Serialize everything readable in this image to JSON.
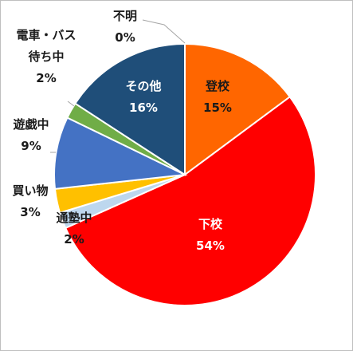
{
  "chart_data": {
    "type": "pie",
    "title": "",
    "slices": [
      {
        "name": "不明",
        "value": 0,
        "value_label": "0%",
        "color": "#7f7f7f",
        "name_lines": [
          "不明"
        ]
      },
      {
        "name": "登校",
        "value": 15,
        "value_label": "15%",
        "color": "#ff6600",
        "name_lines": [
          "登校"
        ]
      },
      {
        "name": "下校",
        "value": 54,
        "value_label": "54%",
        "color": "#ff0000",
        "name_lines": [
          "下校"
        ]
      },
      {
        "name": "通塾中",
        "value": 2,
        "value_label": "2%",
        "color": "#bdd7ee",
        "name_lines": [
          "通塾中"
        ]
      },
      {
        "name": "買い物",
        "value": 3,
        "value_label": "3%",
        "color": "#ffc000",
        "name_lines": [
          "買い物"
        ]
      },
      {
        "name": "遊戯中",
        "value": 9,
        "value_label": "9%",
        "color": "#4472c4",
        "name_lines": [
          "遊戯中"
        ]
      },
      {
        "name": "電車・バス待ち中",
        "value": 2,
        "value_label": "2%",
        "color": "#70ad47",
        "name_lines": [
          "電車・バス",
          "待ち中"
        ]
      },
      {
        "name": "その他",
        "value": 16,
        "value_label": "16%",
        "color": "#1f4e79",
        "name_lines": [
          "その他"
        ]
      }
    ],
    "legend": "none",
    "data_labels": "category-and-percent"
  }
}
